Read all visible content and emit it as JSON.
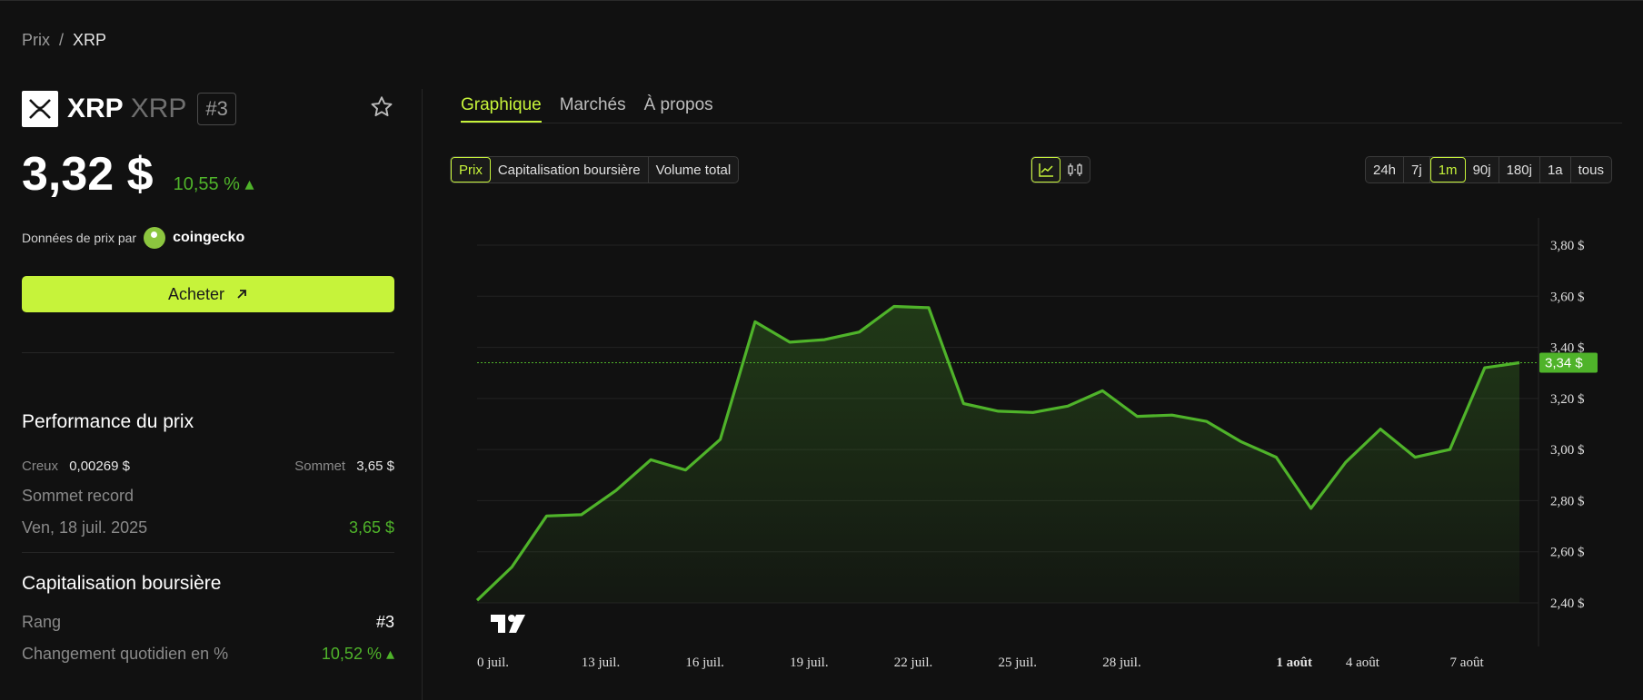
{
  "breadcrumb": {
    "root": "Prix",
    "sep": "/",
    "current": "XRP"
  },
  "coin": {
    "name": "XRP",
    "symbol": "XRP",
    "rank": "#3",
    "price": "3,32 $",
    "change": "10,55 % ▴"
  },
  "source": {
    "label": "Données de prix par",
    "name": "coingecko"
  },
  "buy_label": "Acheter",
  "performance": {
    "title": "Performance du prix",
    "low_label": "Creux",
    "low_value": "0,00269 $",
    "high_label": "Sommet",
    "high_value": "3,65 $",
    "ath_label": "Sommet record",
    "ath_date": "Ven, 18 juil. 2025",
    "ath_value": "3,65 $"
  },
  "market_cap": {
    "title": "Capitalisation boursière",
    "rank_label": "Rang",
    "rank_value": "#3",
    "daily_label": "Changement quotidien en %",
    "daily_value": "10,52 % ▴"
  },
  "tabs": [
    "Graphique",
    "Marchés",
    "À propos"
  ],
  "metric_buttons": [
    "Prix",
    "Capitalisation boursière",
    "Volume total"
  ],
  "chart_type_icons": [
    "line-chart-icon",
    "candlestick-icon"
  ],
  "ranges": [
    "24h",
    "7j",
    "1m",
    "90j",
    "180j",
    "1a",
    "tous"
  ],
  "colors": {
    "accent": "#c6f33a",
    "line": "#4fb32a",
    "bg": "#111111"
  },
  "chart_data": {
    "type": "area",
    "x": [
      "0 juil.",
      "",
      "",
      "13 juil.",
      "",
      "",
      "16 juil.",
      "",
      "",
      "19 juil.",
      "",
      "",
      "22 juil.",
      "",
      "",
      "25 juil.",
      "",
      "",
      "28 juil.",
      "",
      "",
      "",
      "",
      "1 août",
      "",
      "4 août",
      "",
      "",
      "7 août",
      "",
      ""
    ],
    "y": [
      2.41,
      2.54,
      2.74,
      2.745,
      2.84,
      2.96,
      2.92,
      3.04,
      3.5,
      3.42,
      3.43,
      3.46,
      3.56,
      3.555,
      3.18,
      3.15,
      3.145,
      3.17,
      3.23,
      3.13,
      3.135,
      3.11,
      3.03,
      2.97,
      2.77,
      2.95,
      3.08,
      2.97,
      3.0,
      3.32,
      3.34
    ],
    "xticks": [
      "0 juil.",
      "13 juil.",
      "16 juil.",
      "19 juil.",
      "22 juil.",
      "25 juil.",
      "28 juil.",
      "1 août",
      "4 août",
      "7 août"
    ],
    "yticks": [
      "3,80 $",
      "3,60 $",
      "3,40 $",
      "3,20 $",
      "3,00 $",
      "2,80 $",
      "2,60 $",
      "2,40 $"
    ],
    "ylim": [
      2.4,
      3.8
    ],
    "current_label": "3,34 $",
    "current_value": 3.34,
    "grid": true
  }
}
